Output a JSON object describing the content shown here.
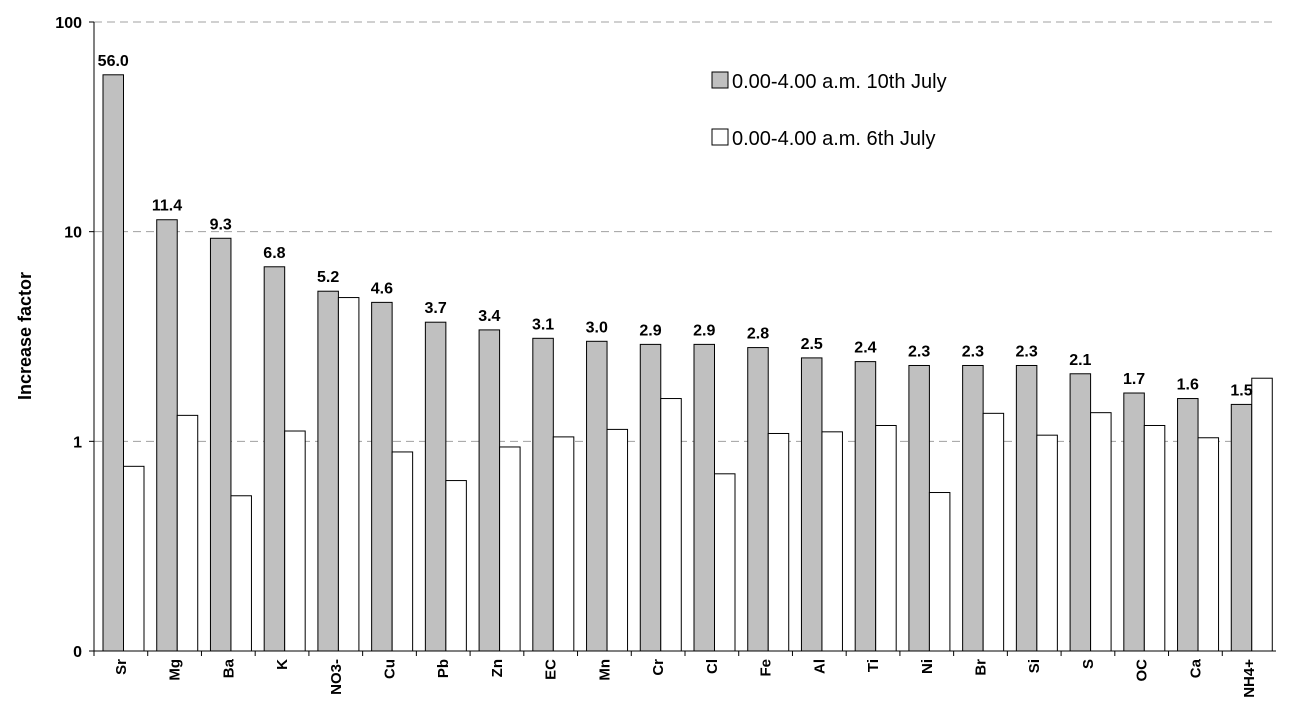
{
  "chart_data": {
    "type": "bar",
    "title": "",
    "xlabel": "",
    "ylabel": "Increase factor",
    "yscale": "log",
    "ylim": [
      0.1,
      100
    ],
    "ytick_values": [
      0.1,
      1,
      10,
      100
    ],
    "ytick_labels": [
      "0",
      "1",
      "10",
      "100"
    ],
    "grid": "horizontal dashed",
    "legend_position": "top-right",
    "categories": [
      "Sr",
      "Mg",
      "Ba",
      "K",
      "NO3-",
      "Cu",
      "Pb",
      "Zn",
      "EC",
      "Mn",
      "Cr",
      "Cl",
      "Fe",
      "Al",
      "Ti",
      "Ni",
      "Br",
      "Si",
      "S",
      "OC",
      "Ca",
      "NH4+"
    ],
    "series": [
      {
        "name": "0.00-4.00 a.m. 10th July",
        "color": "#c0c0c0",
        "values": [
          56.0,
          11.4,
          9.3,
          6.8,
          5.2,
          4.6,
          3.7,
          3.4,
          3.1,
          3.0,
          2.9,
          2.9,
          2.8,
          2.5,
          2.4,
          2.3,
          2.3,
          2.3,
          2.1,
          1.7,
          1.6,
          1.5
        ],
        "data_labels": [
          "56.0",
          "11.4",
          "9.3",
          "6.8",
          "5.2",
          "4.6",
          "3.7",
          "3.4",
          "3.1",
          "3.0",
          "2.9",
          "2.9",
          "2.8",
          "2.5",
          "2.4",
          "2.3",
          "2.3",
          "2.3",
          "2.1",
          "1.7",
          "1.6",
          "1.5"
        ]
      },
      {
        "name": "0.00-4.00 a.m. 6th July",
        "color": "#ffffff",
        "values": [
          0.76,
          1.33,
          0.55,
          1.12,
          4.85,
          0.89,
          0.65,
          0.94,
          1.05,
          1.14,
          1.6,
          0.7,
          1.09,
          1.11,
          1.19,
          0.57,
          1.36,
          1.07,
          1.37,
          1.19,
          1.04,
          2.0
        ]
      }
    ]
  }
}
